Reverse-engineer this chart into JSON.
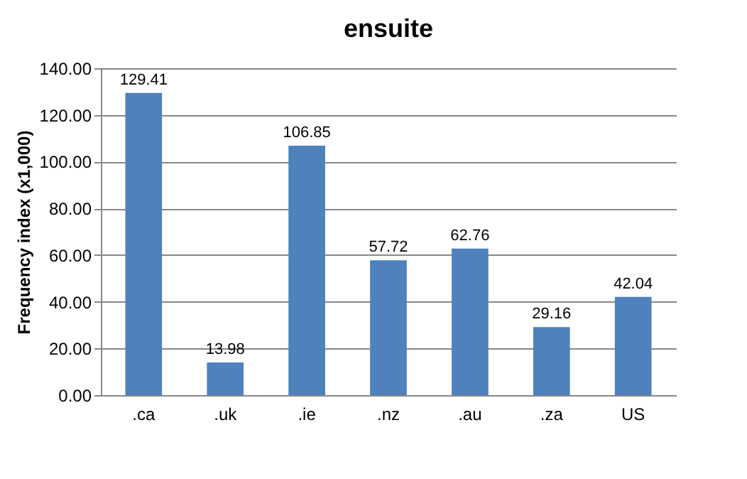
{
  "chart_data": {
    "type": "bar",
    "title": "ensuite",
    "ylabel": "Frequency index (x1,000)",
    "categories": [
      ".ca",
      ".uk",
      ".ie",
      ".nz",
      ".au",
      ".za",
      "US"
    ],
    "values": [
      129.41,
      13.98,
      106.85,
      57.72,
      62.76,
      29.16,
      42.04
    ],
    "color": "#4f81bd",
    "ylim": [
      0,
      140
    ],
    "yticks": [
      {
        "value": 0,
        "label": "0.00"
      },
      {
        "value": 20,
        "label": "20.00"
      },
      {
        "value": 40,
        "label": "40.00"
      },
      {
        "value": 60,
        "label": "60.00"
      },
      {
        "value": 80,
        "label": "80.00"
      },
      {
        "value": 100,
        "label": "100.00"
      },
      {
        "value": 120,
        "label": "120.00"
      },
      {
        "value": 140,
        "label": "140.00"
      }
    ],
    "grid": "y",
    "data_labels": true
  }
}
